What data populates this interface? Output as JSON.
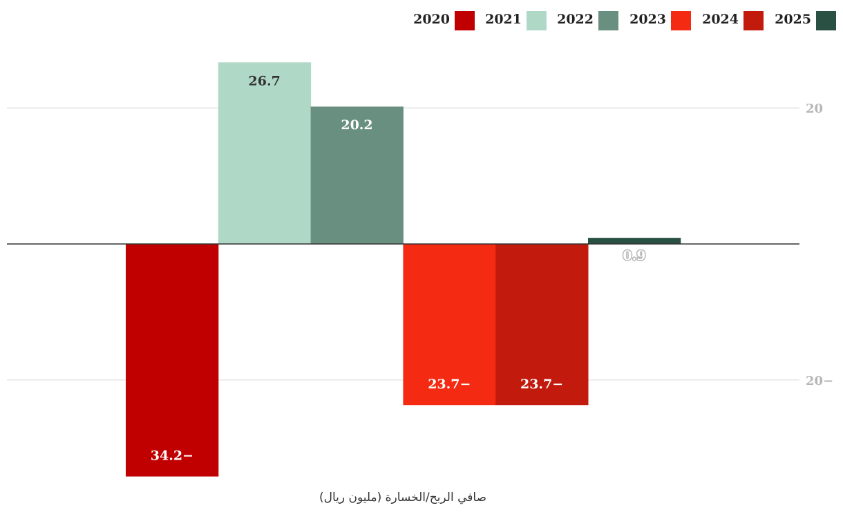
{
  "chart_data": {
    "type": "bar",
    "xlabel": "صافي الربح/الخسارة (مليون ريال)",
    "categories": [
      "2020",
      "2021",
      "2022",
      "2023",
      "2024",
      "2025"
    ],
    "values": [
      -34.2,
      26.7,
      20.2,
      -23.7,
      -23.7,
      0.9
    ],
    "data_labels": [
      "34.2−",
      "26.7",
      "20.2",
      "23.7−",
      "23.7−",
      "0.9"
    ],
    "colors": [
      "#c00000",
      "#b0d8c6",
      "#698f80",
      "#f52a12",
      "#c21a0c",
      "#2a4f43"
    ],
    "label_colors": [
      "#ffffff",
      "#333333",
      "#ffffff",
      "#ffffff",
      "#ffffff",
      "#ffffff"
    ],
    "legend": {
      "placement": "top-right",
      "entries": [
        "2020",
        "2021",
        "2022",
        "2023",
        "2024",
        "2025"
      ]
    },
    "y_ticks": [
      {
        "value": 20,
        "label": "20"
      },
      {
        "value": -20,
        "label": "20−"
      }
    ],
    "ylim": [
      -34.2,
      26.7
    ],
    "grid": true
  }
}
